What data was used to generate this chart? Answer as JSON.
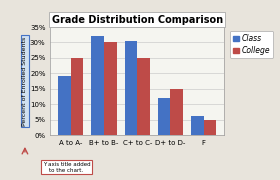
{
  "title": "Grade Distribution Comparison",
  "categories": [
    "A to A-",
    "B+ to B-",
    "C+ to C-",
    "D+ to D-",
    "F"
  ],
  "class_values": [
    19,
    32,
    30.5,
    12,
    6
  ],
  "college_values": [
    25,
    30,
    25,
    15,
    5
  ],
  "class_color": "#4472C4",
  "college_color": "#BE4B48",
  "ylabel": "Percent of Enrolled Students",
  "ylim": [
    0,
    35
  ],
  "yticks": [
    0,
    5,
    10,
    15,
    20,
    25,
    30,
    35
  ],
  "ytick_labels": [
    "0%",
    "5%",
    "10%",
    "15%",
    "20%",
    "25%",
    "30%",
    "35%"
  ],
  "legend_labels": [
    "Class",
    "College"
  ],
  "background_color": "#E8E4DC",
  "plot_bg_color": "#F5F5F0",
  "annotation_text": "Y axis title added\nto the chart.",
  "title_fontsize": 7,
  "axis_fontsize": 4.5,
  "tick_fontsize": 5,
  "legend_fontsize": 5.5
}
